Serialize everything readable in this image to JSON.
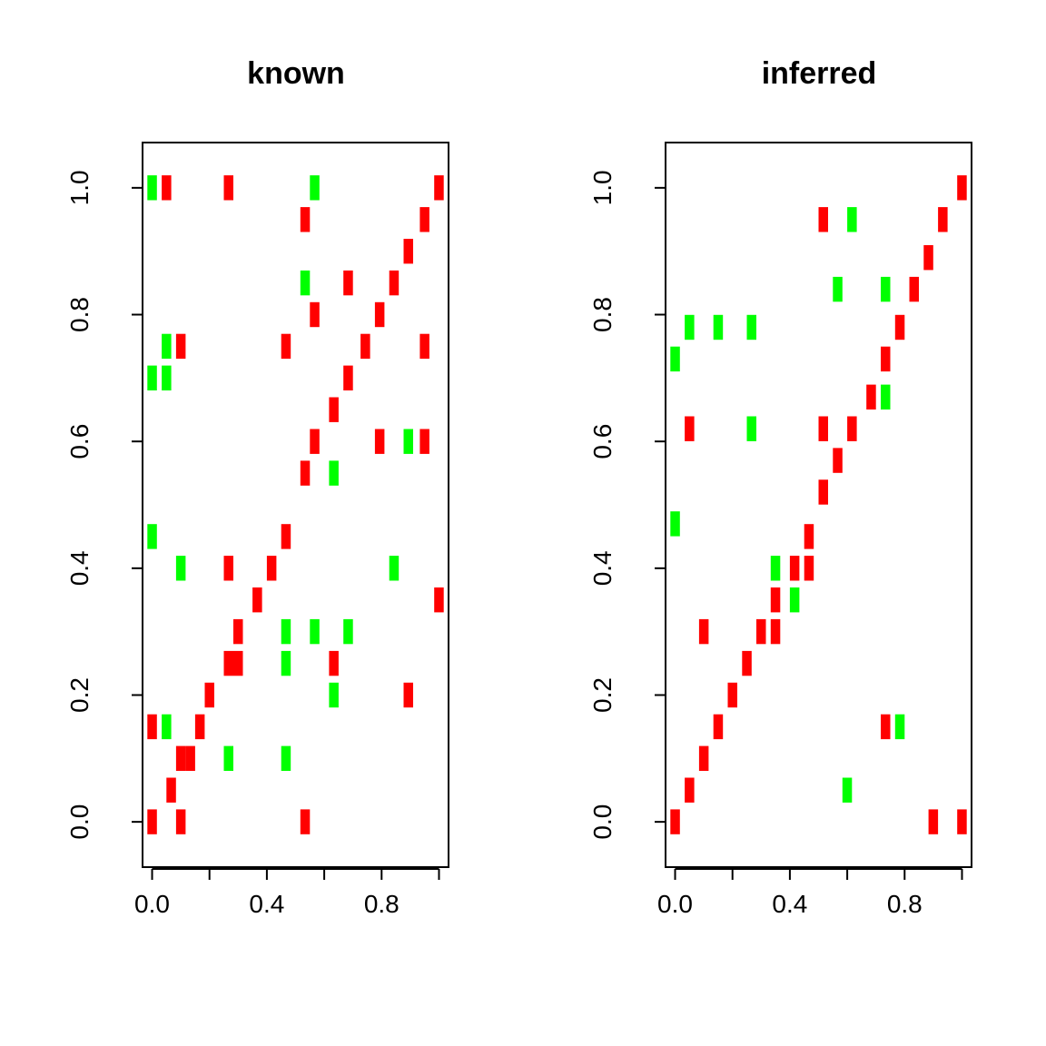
{
  "colors": {
    "red": "#FF0000",
    "green": "#00FF00"
  },
  "chart_data": [
    {
      "type": "heatmap",
      "title": "known",
      "xlabel": "",
      "ylabel": "",
      "xlim": [
        -0.0333,
        1.0333
      ],
      "ylim": [
        -0.0714,
        1.0714
      ],
      "xticks": [
        "0.0",
        "0.4",
        "0.8"
      ],
      "xtick_values": [
        0.0,
        0.2,
        0.4,
        0.6,
        0.8,
        1.0
      ],
      "yticks": [
        "0.0",
        "0.2",
        "0.4",
        "0.6",
        "0.8",
        "1.0"
      ],
      "grid": false,
      "legend": "none",
      "cell_width": 0.0333,
      "cell_height": 0.0714,
      "cells": [
        {
          "x": 0.0,
          "y": 0.0,
          "value": "red"
        },
        {
          "x": 0.1,
          "y": 0.0,
          "value": "red"
        },
        {
          "x": 0.5333,
          "y": 0.0,
          "value": "red"
        },
        {
          "x": 0.0667,
          "y": 0.05,
          "value": "red"
        },
        {
          "x": 0.1,
          "y": 0.1,
          "value": "red"
        },
        {
          "x": 0.1333,
          "y": 0.1,
          "value": "red"
        },
        {
          "x": 0.2667,
          "y": 0.1,
          "value": "green"
        },
        {
          "x": 0.4667,
          "y": 0.1,
          "value": "green"
        },
        {
          "x": 0.0,
          "y": 0.15,
          "value": "red"
        },
        {
          "x": 0.05,
          "y": 0.15,
          "value": "green"
        },
        {
          "x": 0.1667,
          "y": 0.15,
          "value": "red"
        },
        {
          "x": 0.2,
          "y": 0.2,
          "value": "red"
        },
        {
          "x": 0.6333,
          "y": 0.2,
          "value": "green"
        },
        {
          "x": 0.8933,
          "y": 0.2,
          "value": "red"
        },
        {
          "x": 0.2667,
          "y": 0.25,
          "value": "red"
        },
        {
          "x": 0.3,
          "y": 0.25,
          "value": "red"
        },
        {
          "x": 0.4667,
          "y": 0.25,
          "value": "green"
        },
        {
          "x": 0.6333,
          "y": 0.25,
          "value": "red"
        },
        {
          "x": 0.3,
          "y": 0.3,
          "value": "red"
        },
        {
          "x": 0.4667,
          "y": 0.3,
          "value": "green"
        },
        {
          "x": 0.5667,
          "y": 0.3,
          "value": "green"
        },
        {
          "x": 0.6833,
          "y": 0.3,
          "value": "green"
        },
        {
          "x": 0.3667,
          "y": 0.35,
          "value": "red"
        },
        {
          "x": 1.0,
          "y": 0.35,
          "value": "red"
        },
        {
          "x": 0.1,
          "y": 0.4,
          "value": "green"
        },
        {
          "x": 0.2667,
          "y": 0.4,
          "value": "red"
        },
        {
          "x": 0.4167,
          "y": 0.4,
          "value": "red"
        },
        {
          "x": 0.8433,
          "y": 0.4,
          "value": "green"
        },
        {
          "x": 0.0,
          "y": 0.45,
          "value": "green"
        },
        {
          "x": 0.4667,
          "y": 0.45,
          "value": "red"
        },
        {
          "x": 0.5333,
          "y": 0.55,
          "value": "red"
        },
        {
          "x": 0.6333,
          "y": 0.55,
          "value": "green"
        },
        {
          "x": 0.5667,
          "y": 0.6,
          "value": "red"
        },
        {
          "x": 0.7933,
          "y": 0.6,
          "value": "red"
        },
        {
          "x": 0.8933,
          "y": 0.6,
          "value": "green"
        },
        {
          "x": 0.95,
          "y": 0.6,
          "value": "red"
        },
        {
          "x": 0.6333,
          "y": 0.65,
          "value": "red"
        },
        {
          "x": 0.0,
          "y": 0.7,
          "value": "green"
        },
        {
          "x": 0.05,
          "y": 0.7,
          "value": "green"
        },
        {
          "x": 0.6833,
          "y": 0.7,
          "value": "red"
        },
        {
          "x": 0.05,
          "y": 0.75,
          "value": "green"
        },
        {
          "x": 0.1,
          "y": 0.75,
          "value": "red"
        },
        {
          "x": 0.4667,
          "y": 0.75,
          "value": "red"
        },
        {
          "x": 0.7433,
          "y": 0.75,
          "value": "red"
        },
        {
          "x": 0.95,
          "y": 0.75,
          "value": "red"
        },
        {
          "x": 0.5667,
          "y": 0.8,
          "value": "red"
        },
        {
          "x": 0.7933,
          "y": 0.8,
          "value": "red"
        },
        {
          "x": 0.5333,
          "y": 0.85,
          "value": "green"
        },
        {
          "x": 0.6833,
          "y": 0.85,
          "value": "red"
        },
        {
          "x": 0.8433,
          "y": 0.85,
          "value": "red"
        },
        {
          "x": 0.8933,
          "y": 0.9,
          "value": "red"
        },
        {
          "x": 0.5333,
          "y": 0.95,
          "value": "red"
        },
        {
          "x": 0.95,
          "y": 0.95,
          "value": "red"
        },
        {
          "x": 0.0,
          "y": 1.0,
          "value": "green"
        },
        {
          "x": 0.05,
          "y": 1.0,
          "value": "red"
        },
        {
          "x": 0.2667,
          "y": 1.0,
          "value": "red"
        },
        {
          "x": 0.5667,
          "y": 1.0,
          "value": "green"
        },
        {
          "x": 1.0,
          "y": 1.0,
          "value": "red"
        }
      ]
    },
    {
      "type": "heatmap",
      "title": "inferred",
      "xlabel": "",
      "ylabel": "",
      "xlim": [
        -0.0333,
        1.0333
      ],
      "ylim": [
        -0.0714,
        1.0714
      ],
      "xticks": [
        "0.0",
        "0.4",
        "0.8"
      ],
      "xtick_values": [
        0.0,
        0.2,
        0.4,
        0.6,
        0.8,
        1.0
      ],
      "yticks": [
        "0.0",
        "0.2",
        "0.4",
        "0.6",
        "0.8",
        "1.0"
      ],
      "grid": false,
      "legend": "none",
      "cell_width": 0.0333,
      "cell_height": 0.0714,
      "cells": [
        {
          "x": 0.0,
          "y": 0.0,
          "value": "red"
        },
        {
          "x": 0.9,
          "y": 0.0,
          "value": "red"
        },
        {
          "x": 1.0,
          "y": 0.0,
          "value": "red"
        },
        {
          "x": 0.05,
          "y": 0.05,
          "value": "red"
        },
        {
          "x": 0.6,
          "y": 0.05,
          "value": "green"
        },
        {
          "x": 0.1,
          "y": 0.1,
          "value": "red"
        },
        {
          "x": 0.15,
          "y": 0.15,
          "value": "red"
        },
        {
          "x": 0.7333,
          "y": 0.15,
          "value": "red"
        },
        {
          "x": 0.7833,
          "y": 0.15,
          "value": "green"
        },
        {
          "x": 0.2,
          "y": 0.2,
          "value": "red"
        },
        {
          "x": 0.25,
          "y": 0.25,
          "value": "red"
        },
        {
          "x": 0.1,
          "y": 0.3,
          "value": "red"
        },
        {
          "x": 0.3,
          "y": 0.3,
          "value": "red"
        },
        {
          "x": 0.35,
          "y": 0.3,
          "value": "red"
        },
        {
          "x": 0.35,
          "y": 0.35,
          "value": "red"
        },
        {
          "x": 0.4167,
          "y": 0.35,
          "value": "green"
        },
        {
          "x": 0.35,
          "y": 0.4,
          "value": "green"
        },
        {
          "x": 0.4167,
          "y": 0.4,
          "value": "red"
        },
        {
          "x": 0.4667,
          "y": 0.4,
          "value": "red"
        },
        {
          "x": 0.4667,
          "y": 0.45,
          "value": "red"
        },
        {
          "x": 0.0,
          "y": 0.47,
          "value": "green"
        },
        {
          "x": 0.5167,
          "y": 0.52,
          "value": "red"
        },
        {
          "x": 0.5667,
          "y": 0.57,
          "value": "red"
        },
        {
          "x": 0.05,
          "y": 0.62,
          "value": "red"
        },
        {
          "x": 0.2667,
          "y": 0.62,
          "value": "green"
        },
        {
          "x": 0.5167,
          "y": 0.62,
          "value": "red"
        },
        {
          "x": 0.6167,
          "y": 0.62,
          "value": "red"
        },
        {
          "x": 0.6833,
          "y": 0.67,
          "value": "red"
        },
        {
          "x": 0.7333,
          "y": 0.67,
          "value": "green"
        },
        {
          "x": 0.0,
          "y": 0.73,
          "value": "green"
        },
        {
          "x": 0.7333,
          "y": 0.73,
          "value": "red"
        },
        {
          "x": 0.05,
          "y": 0.78,
          "value": "green"
        },
        {
          "x": 0.15,
          "y": 0.78,
          "value": "green"
        },
        {
          "x": 0.2667,
          "y": 0.78,
          "value": "green"
        },
        {
          "x": 0.7833,
          "y": 0.78,
          "value": "red"
        },
        {
          "x": 0.5667,
          "y": 0.84,
          "value": "green"
        },
        {
          "x": 0.7333,
          "y": 0.84,
          "value": "green"
        },
        {
          "x": 0.8333,
          "y": 0.84,
          "value": "red"
        },
        {
          "x": 0.8833,
          "y": 0.89,
          "value": "red"
        },
        {
          "x": 0.5167,
          "y": 0.95,
          "value": "red"
        },
        {
          "x": 0.6167,
          "y": 0.95,
          "value": "green"
        },
        {
          "x": 0.9333,
          "y": 0.95,
          "value": "red"
        },
        {
          "x": 1.0,
          "y": 1.0,
          "value": "red"
        }
      ]
    }
  ]
}
